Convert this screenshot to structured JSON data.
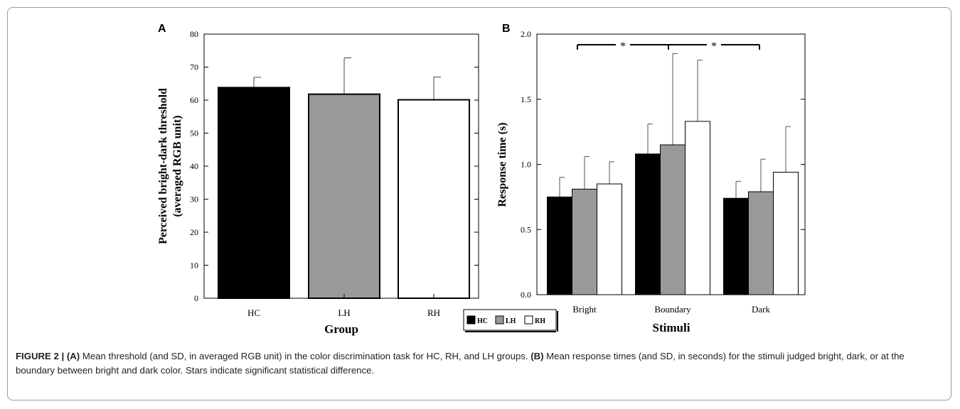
{
  "chart_data": [
    {
      "panel_letter": "A",
      "type": "bar",
      "categories": [
        "HC",
        "LH",
        "RH"
      ],
      "values": [
        63.8,
        61.8,
        60.1
      ],
      "errors": [
        3.1,
        11.0,
        6.9
      ],
      "colors": [
        "#000000",
        "#999999",
        "#ffffff"
      ],
      "xlabel": "Group",
      "ylabel": "Perceived bright-dark threshold",
      "ylabel2": "(averaged RGB unit)",
      "ylim": [
        0,
        80
      ],
      "yticks": [
        "0",
        "10",
        "20",
        "30",
        "40",
        "50",
        "60",
        "70",
        "80"
      ]
    },
    {
      "panel_letter": "B",
      "type": "bar",
      "categories": [
        "Bright",
        "Boundary",
        "Dark"
      ],
      "series": [
        {
          "name": "HC",
          "color": "#000000",
          "values": [
            0.75,
            1.08,
            0.74
          ],
          "errors": [
            0.15,
            0.23,
            0.13
          ]
        },
        {
          "name": "LH",
          "color": "#999999",
          "values": [
            0.81,
            1.15,
            0.79
          ],
          "errors": [
            0.25,
            0.7,
            0.25
          ]
        },
        {
          "name": "RH",
          "color": "#ffffff",
          "values": [
            0.85,
            1.33,
            0.94
          ],
          "errors": [
            0.17,
            0.47,
            0.35
          ]
        }
      ],
      "xlabel": "Stimuli",
      "ylabel": "Response time (s)",
      "ylim": [
        0,
        2.0
      ],
      "yticks": [
        "0.0",
        "0.5",
        "1.0",
        "1.5",
        "2.0"
      ],
      "significance_marker": "*",
      "legend_position": "bottom-left"
    }
  ],
  "caption": {
    "label": "FIGURE 2 |",
    "part_a_tag": "(A)",
    "part_a_text": " Mean threshold (and SD, in averaged RGB unit) in the color discrimination task for HC, RH, and LH groups. ",
    "part_b_tag": "(B)",
    "part_b_text": " Mean response times (and SD, in seconds) for the stimuli judged bright, dark, or at the boundary between bright and dark color. Stars indicate significant statistical difference."
  }
}
